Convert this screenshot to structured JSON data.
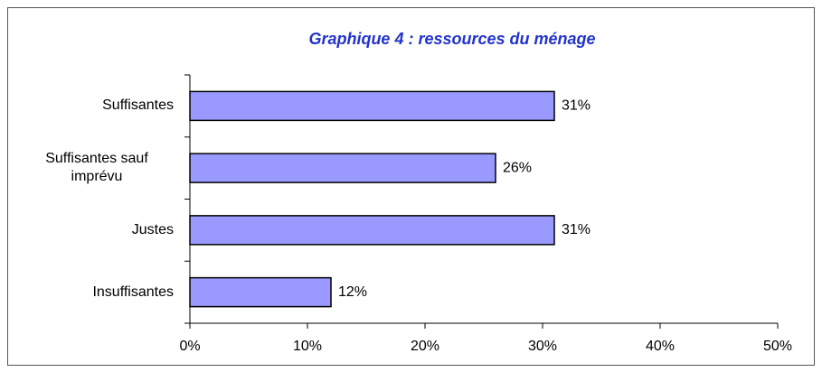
{
  "chart_data": {
    "type": "bar",
    "orientation": "horizontal",
    "title": "Graphique 4 : ressources du ménage",
    "categories": [
      "Suffisantes",
      "Suffisantes sauf imprévu",
      "Justes",
      "Insuffisantes"
    ],
    "values": [
      31,
      26,
      31,
      12
    ],
    "value_labels": [
      "31%",
      "26%",
      "31%",
      "12%"
    ],
    "color": "#9999ff",
    "xlim": [
      0,
      50
    ],
    "xticks": [
      {
        "value": 0,
        "label": "0%"
      },
      {
        "value": 10,
        "label": "10%"
      },
      {
        "value": 20,
        "label": "20%"
      },
      {
        "value": 30,
        "label": "30%"
      },
      {
        "value": 40,
        "label": "40%"
      },
      {
        "value": 50,
        "label": "50%"
      }
    ]
  }
}
